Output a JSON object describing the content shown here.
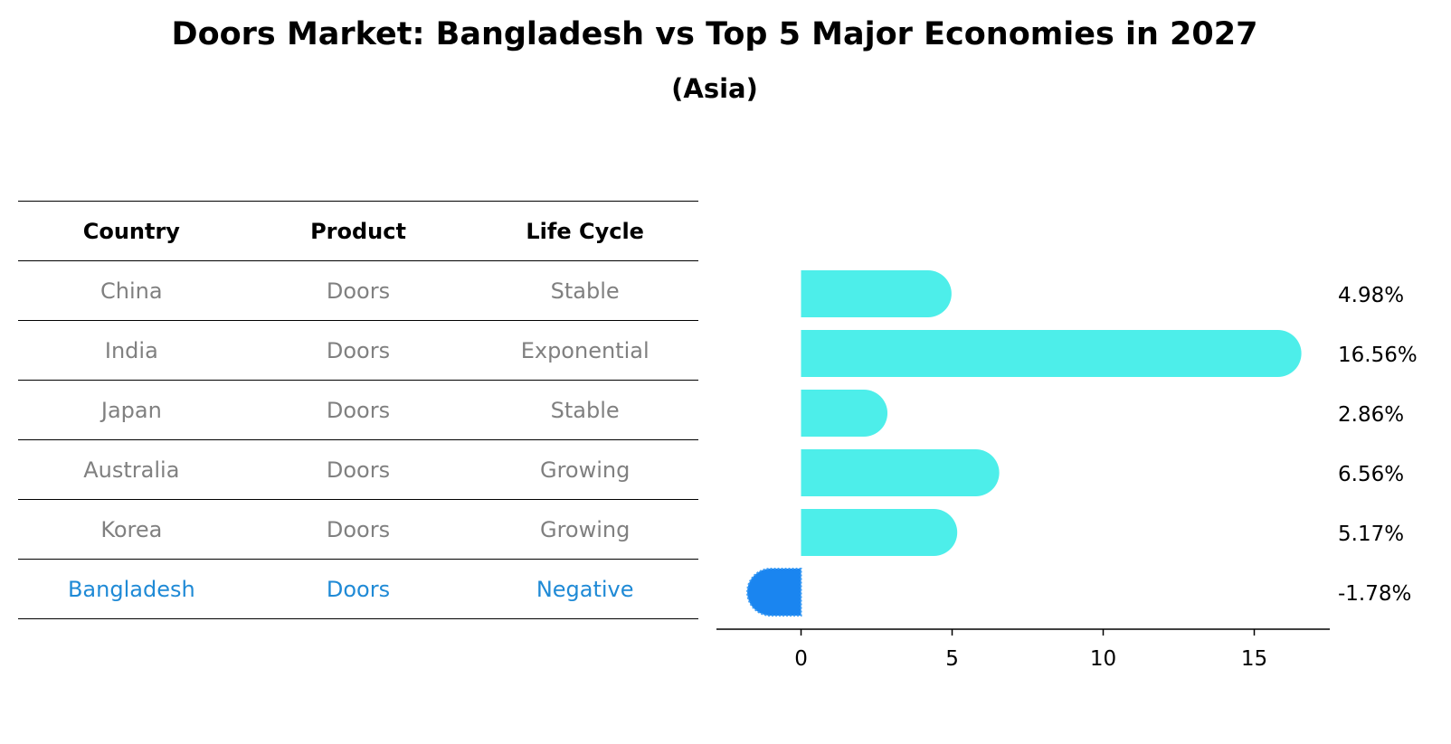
{
  "title": "Doors Market: Bangladesh vs Top 5 Major Economies in 2027",
  "subtitle": "(Asia)",
  "table": {
    "headers": [
      "Country",
      "Product",
      "Life Cycle"
    ],
    "rows": [
      {
        "country": "China",
        "product": "Doors",
        "life_cycle": "Stable"
      },
      {
        "country": "India",
        "product": "Doors",
        "life_cycle": "Exponential"
      },
      {
        "country": "Japan",
        "product": "Doors",
        "life_cycle": "Stable"
      },
      {
        "country": "Australia",
        "product": "Doors",
        "life_cycle": "Growing"
      },
      {
        "country": "Korea",
        "product": "Doors",
        "life_cycle": "Growing"
      },
      {
        "country": "Bangladesh",
        "product": "Doors",
        "life_cycle": "Negative"
      }
    ]
  },
  "colors": {
    "positive_bar": "#4deeea",
    "negative_bar": "#1a85f0",
    "highlight_text": "#1f8ad6",
    "muted_text": "#808080"
  },
  "chart_data": {
    "type": "bar",
    "orientation": "horizontal",
    "categories": [
      "China",
      "India",
      "Japan",
      "Australia",
      "Korea",
      "Bangladesh"
    ],
    "values": [
      4.98,
      16.56,
      2.86,
      6.56,
      5.17,
      -1.78
    ],
    "value_labels": [
      "4.98%",
      "16.56%",
      "2.86%",
      "6.56%",
      "5.17%",
      "-1.78%"
    ],
    "xlim": [
      -2.8,
      17.5
    ],
    "xticks": [
      0,
      5,
      10,
      15
    ],
    "xtick_labels": [
      "0",
      "5",
      "10",
      "15"
    ],
    "xlabel": "",
    "ylabel": "",
    "grid": false
  }
}
